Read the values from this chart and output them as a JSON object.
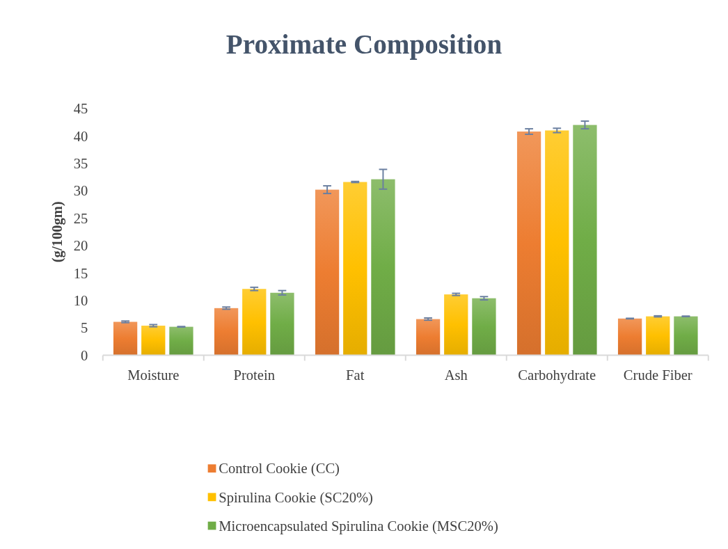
{
  "chart_data": {
    "type": "bar",
    "title": "Proximate Composition",
    "ylabel": "(g/100gm)",
    "categories": [
      "Moisture",
      "Protein",
      "Fat",
      "Ash",
      "Carbohydrate",
      "Crude Fiber"
    ],
    "series": [
      {
        "name": "Control Cookie (CC)",
        "color": "#ed7d31",
        "values": [
          6.1,
          8.6,
          30.2,
          6.6,
          40.8,
          6.7
        ],
        "errors": [
          0.15,
          0.2,
          0.7,
          0.2,
          0.5,
          0.05
        ]
      },
      {
        "name": "Spirulina Cookie (SC20%)",
        "color": "#ffc000",
        "values": [
          5.4,
          12.1,
          31.6,
          11.1,
          41.0,
          7.1
        ],
        "errors": [
          0.2,
          0.3,
          0.1,
          0.2,
          0.4,
          0.1
        ]
      },
      {
        "name": "Microencapsulated Spirulina Cookie (MSC20%)",
        "color": "#70ad47",
        "values": [
          5.2,
          11.4,
          32.1,
          10.4,
          42.0,
          7.1
        ],
        "errors": [
          0.05,
          0.4,
          1.8,
          0.3,
          0.7,
          0.05
        ]
      }
    ],
    "ylim": [
      0,
      45
    ],
    "yticks": [
      0,
      5,
      10,
      15,
      20,
      25,
      30,
      35,
      40,
      45
    ],
    "grid": false,
    "legend": "bottom"
  }
}
